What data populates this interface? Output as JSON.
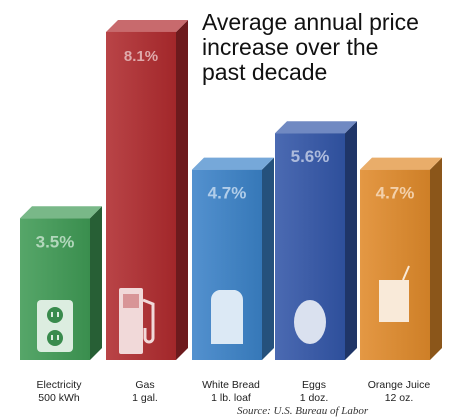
{
  "title_lines": [
    "Average annual price",
    "increase over the",
    "past decade"
  ],
  "source": "Source: U.S. Bureau of Labor",
  "colors": {
    "electricity": "#3f9a55",
    "gas": "#b02a2e",
    "bread": "#3b82c8",
    "eggs": "#3256a8",
    "juice": "#e08a2a"
  },
  "icons": [
    "outlet-icon",
    "gas-pump-icon",
    "bread-icon",
    "egg-icon",
    "juice-box-icon"
  ],
  "chart_data": {
    "type": "bar",
    "title": "Average annual price increase over the past decade",
    "categories": [
      [
        "Electricity",
        "500 kWh"
      ],
      [
        "Gas",
        "1 gal."
      ],
      [
        "White Bread",
        "1 lb. loaf"
      ],
      [
        "Eggs",
        "1 doz."
      ],
      [
        "Orange Juice",
        "12 oz."
      ]
    ],
    "values": [
      3.5,
      8.1,
      4.7,
      5.6,
      4.7
    ],
    "labels": [
      "3.5%",
      "8.1%",
      "4.7%",
      "5.6%",
      "4.7%"
    ],
    "unit": "%"
  }
}
